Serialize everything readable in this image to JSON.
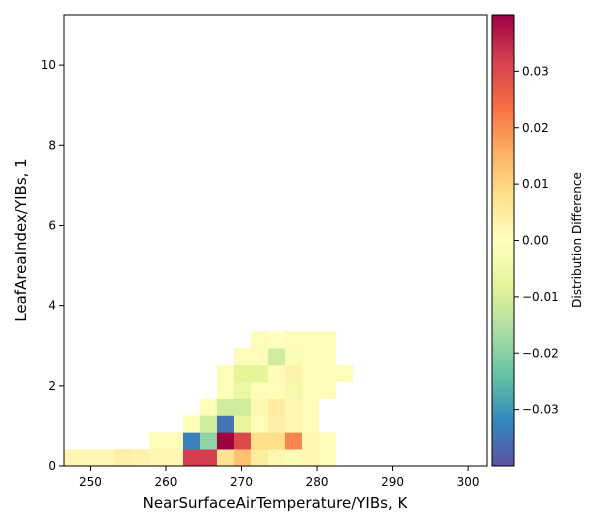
{
  "chart_data": {
    "type": "heatmap",
    "xlabel": "NearSurfaceAirTemperature/YIBs,  K",
    "ylabel": "LeafAreaIndex/YIBs,  1",
    "colorbar_label": "Distribution Difference",
    "colormap": "Spectral_r",
    "xlim": [
      246.5,
      302.5
    ],
    "ylim": [
      0,
      11.25
    ],
    "x_ticks": [
      250,
      260,
      270,
      280,
      290,
      300
    ],
    "x_tick_labels": [
      "250",
      "260",
      "270",
      "280",
      "290",
      "300"
    ],
    "y_ticks": [
      0,
      2,
      4,
      6,
      8,
      10
    ],
    "y_tick_labels": [
      "0",
      "2",
      "4",
      "6",
      "8",
      "10"
    ],
    "clim": [
      -0.04,
      0.04
    ],
    "colorbar_ticks": [
      -0.03,
      -0.02,
      -0.01,
      0.0,
      0.01,
      0.02,
      0.03
    ],
    "colorbar_tick_labels": [
      "−0.03",
      "−0.02",
      "−0.01",
      "0.00",
      "0.01",
      "0.02",
      "0.03"
    ],
    "bin_width_x": 2.25,
    "bin_height_y": 0.42,
    "cells": [
      {
        "x": 246.5,
        "y": 0.0,
        "v": 0.002
      },
      {
        "x": 248.75,
        "y": 0.0,
        "v": 0.002
      },
      {
        "x": 251.0,
        "y": 0.0,
        "v": 0.002
      },
      {
        "x": 253.25,
        "y": 0.0,
        "v": 0.004
      },
      {
        "x": 255.5,
        "y": 0.0,
        "v": 0.003
      },
      {
        "x": 257.75,
        "y": 0.0,
        "v": 0.002
      },
      {
        "x": 260.0,
        "y": 0.0,
        "v": 0.002
      },
      {
        "x": 262.25,
        "y": 0.0,
        "v": 0.032
      },
      {
        "x": 264.5,
        "y": 0.0,
        "v": 0.032
      },
      {
        "x": 266.75,
        "y": 0.0,
        "v": 0.007
      },
      {
        "x": 269.0,
        "y": 0.0,
        "v": 0.013
      },
      {
        "x": 271.25,
        "y": 0.0,
        "v": 0.005
      },
      {
        "x": 273.5,
        "y": 0.0,
        "v": 0.002
      },
      {
        "x": 275.75,
        "y": 0.0,
        "v": -0.002
      },
      {
        "x": 278.0,
        "y": 0.0,
        "v": 0.002
      },
      {
        "x": 280.25,
        "y": 0.0,
        "v": 0.001
      },
      {
        "x": 257.75,
        "y": 0.42,
        "v": 0.001
      },
      {
        "x": 260.0,
        "y": 0.42,
        "v": 0.001
      },
      {
        "x": 262.25,
        "y": 0.42,
        "v": -0.033
      },
      {
        "x": 264.5,
        "y": 0.42,
        "v": -0.019
      },
      {
        "x": 266.75,
        "y": 0.42,
        "v": 0.04
      },
      {
        "x": 269.0,
        "y": 0.42,
        "v": 0.03
      },
      {
        "x": 271.25,
        "y": 0.42,
        "v": 0.008
      },
      {
        "x": 273.5,
        "y": 0.42,
        "v": 0.008
      },
      {
        "x": 275.75,
        "y": 0.42,
        "v": 0.021
      },
      {
        "x": 278.0,
        "y": 0.42,
        "v": 0.002
      },
      {
        "x": 280.25,
        "y": 0.42,
        "v": 0.001
      },
      {
        "x": 262.25,
        "y": 0.84,
        "v": -0.001
      },
      {
        "x": 264.5,
        "y": 0.84,
        "v": -0.011
      },
      {
        "x": 266.75,
        "y": 0.84,
        "v": -0.035
      },
      {
        "x": 269.0,
        "y": 0.84,
        "v": -0.007
      },
      {
        "x": 271.25,
        "y": 0.84,
        "v": 0.001
      },
      {
        "x": 273.5,
        "y": 0.84,
        "v": 0.004
      },
      {
        "x": 275.75,
        "y": 0.84,
        "v": 0.002
      },
      {
        "x": 278.0,
        "y": 0.84,
        "v": 0.001
      },
      {
        "x": 264.5,
        "y": 1.26,
        "v": 0.001
      },
      {
        "x": 266.75,
        "y": 1.26,
        "v": -0.011
      },
      {
        "x": 269.0,
        "y": 1.26,
        "v": -0.011
      },
      {
        "x": 271.25,
        "y": 1.26,
        "v": 0.002
      },
      {
        "x": 273.5,
        "y": 1.26,
        "v": 0.005
      },
      {
        "x": 275.75,
        "y": 1.26,
        "v": 0.002
      },
      {
        "x": 278.0,
        "y": 1.26,
        "v": 0.001
      },
      {
        "x": 266.75,
        "y": 1.68,
        "v": 0.001
      },
      {
        "x": 269.0,
        "y": 1.68,
        "v": -0.006
      },
      {
        "x": 271.25,
        "y": 1.68,
        "v": 0.001
      },
      {
        "x": 273.5,
        "y": 1.68,
        "v": 0.001
      },
      {
        "x": 275.75,
        "y": 1.68,
        "v": -0.004
      },
      {
        "x": 278.0,
        "y": 1.68,
        "v": 0.001
      },
      {
        "x": 280.25,
        "y": 1.68,
        "v": 0.001
      },
      {
        "x": 266.75,
        "y": 2.1,
        "v": 0.001
      },
      {
        "x": 269.0,
        "y": 2.1,
        "v": -0.008
      },
      {
        "x": 271.25,
        "y": 2.1,
        "v": -0.008
      },
      {
        "x": 273.5,
        "y": 2.1,
        "v": 0.001
      },
      {
        "x": 275.75,
        "y": 2.1,
        "v": 0.003
      },
      {
        "x": 278.0,
        "y": 2.1,
        "v": 0.001
      },
      {
        "x": 280.25,
        "y": 2.1,
        "v": 0.001
      },
      {
        "x": 282.5,
        "y": 2.1,
        "v": 0.001
      },
      {
        "x": 269.0,
        "y": 2.52,
        "v": 0.001
      },
      {
        "x": 271.25,
        "y": 2.52,
        "v": 0.001
      },
      {
        "x": 273.5,
        "y": 2.52,
        "v": -0.011
      },
      {
        "x": 275.75,
        "y": 2.52,
        "v": -0.002
      },
      {
        "x": 278.0,
        "y": 2.52,
        "v": 0.001
      },
      {
        "x": 280.25,
        "y": 2.52,
        "v": 0.001
      },
      {
        "x": 271.25,
        "y": 2.94,
        "v": 0.001
      },
      {
        "x": 273.5,
        "y": 2.94,
        "v": 0.0
      },
      {
        "x": 275.75,
        "y": 2.94,
        "v": 0.001
      },
      {
        "x": 278.0,
        "y": 2.94,
        "v": 0.001
      },
      {
        "x": 280.25,
        "y": 2.94,
        "v": 0.001
      }
    ]
  }
}
